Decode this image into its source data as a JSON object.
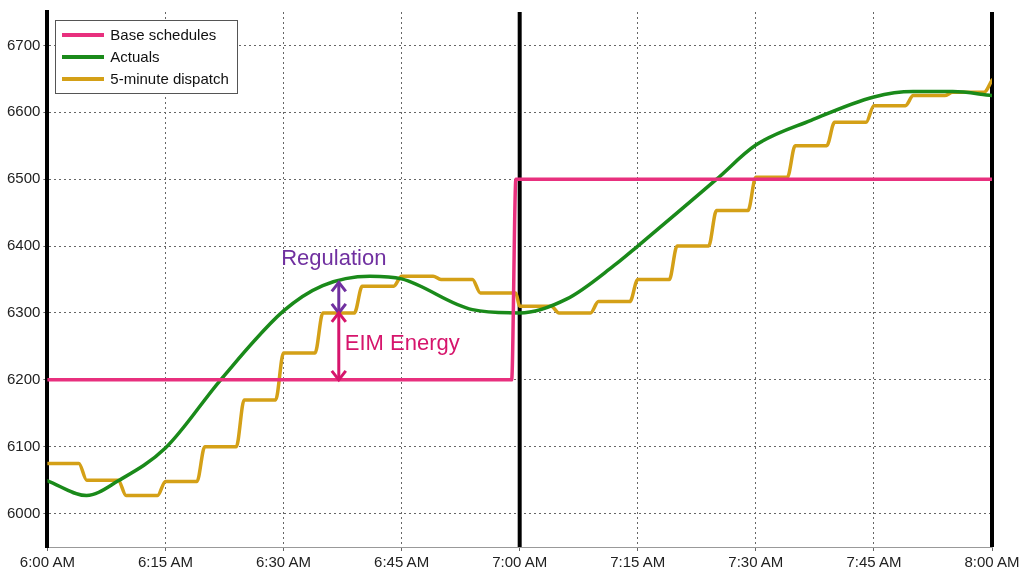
{
  "chart_data": {
    "type": "line",
    "xlim": [
      6,
      8
    ],
    "xticks": [
      {
        "value": 6,
        "label": "6:00 AM"
      },
      {
        "value": 6.25,
        "label": "6:15 AM"
      },
      {
        "value": 6.5,
        "label": "6:30 AM"
      },
      {
        "value": 6.75,
        "label": "6:45 AM"
      },
      {
        "value": 7,
        "label": "7:00 AM"
      },
      {
        "value": 7.25,
        "label": "7:15 AM"
      },
      {
        "value": 7.5,
        "label": "7:30 AM"
      },
      {
        "value": 7.75,
        "label": "7:45 AM"
      },
      {
        "value": 8,
        "label": "8:00 AM"
      }
    ],
    "ylim": [
      5950,
      6750
    ],
    "yticks": [
      6000,
      6100,
      6200,
      6300,
      6400,
      6500,
      6600,
      6700
    ],
    "grid": true,
    "legend": "top left",
    "marker": "none",
    "series": [
      {
        "name": "Base schedules",
        "color": "#e8307e",
        "x": [
          6,
          6.983,
          6.992,
          8
        ],
        "values": [
          6200,
          6200,
          6500,
          6500
        ]
      },
      {
        "name": "Actuals",
        "color": "#1a8a1a",
        "x": [
          6,
          6.083,
          6.15,
          6.25,
          6.367,
          6.5,
          6.583,
          6.683,
          6.75,
          6.9,
          7,
          7.1,
          7.2,
          7.25,
          7.417,
          7.5,
          7.617,
          7.75,
          7.833,
          7.917,
          8
        ],
        "values": [
          6049,
          6027,
          6049,
          6098,
          6200,
          6303,
          6341,
          6355,
          6351,
          6305,
          6300,
          6321,
          6371,
          6400,
          6500,
          6551,
          6588,
          6623,
          6631,
          6631,
          6625
        ]
      },
      {
        "name": "5-minute dispatch",
        "color": "#d4a017",
        "x": [
          6,
          6.0667,
          6.0833,
          6.15,
          6.1667,
          6.2333,
          6.25,
          6.3167,
          6.3333,
          6.4,
          6.4167,
          6.4833,
          6.5,
          6.5667,
          6.5833,
          6.65,
          6.6667,
          6.7333,
          6.75,
          6.8167,
          6.8333,
          6.9,
          6.9167,
          6.9917,
          7,
          7.0667,
          7.0833,
          7.15,
          7.1667,
          7.2333,
          7.25,
          7.3167,
          7.3333,
          7.4,
          7.4167,
          7.4833,
          7.5,
          7.5667,
          7.5833,
          7.65,
          7.6667,
          7.7333,
          7.75,
          7.8167,
          7.8333,
          7.9,
          7.9167,
          7.9833,
          8
        ],
        "values": [
          6075,
          6075,
          6050,
          6050,
          6027,
          6027,
          6048,
          6048,
          6100,
          6100,
          6170,
          6170,
          6240,
          6240,
          6300,
          6300,
          6340,
          6340,
          6355,
          6355,
          6350,
          6350,
          6330,
          6330,
          6310,
          6310,
          6300,
          6300,
          6317,
          6317,
          6350,
          6350,
          6400,
          6400,
          6453,
          6453,
          6503,
          6503,
          6550,
          6550,
          6585,
          6585,
          6610,
          6610,
          6625,
          6625,
          6630,
          6630,
          6648
        ]
      }
    ],
    "ref_lines": [
      {
        "axis": "x",
        "value": 7,
        "color": "#000000"
      },
      {
        "axis": "x",
        "value": 8,
        "color": "#000000"
      }
    ],
    "annotations": [
      {
        "text": "Regulation",
        "x": 6.617,
        "y": 6300
      },
      {
        "text": "EIM Energy",
        "x": 6.617,
        "y": 6200
      }
    ]
  }
}
